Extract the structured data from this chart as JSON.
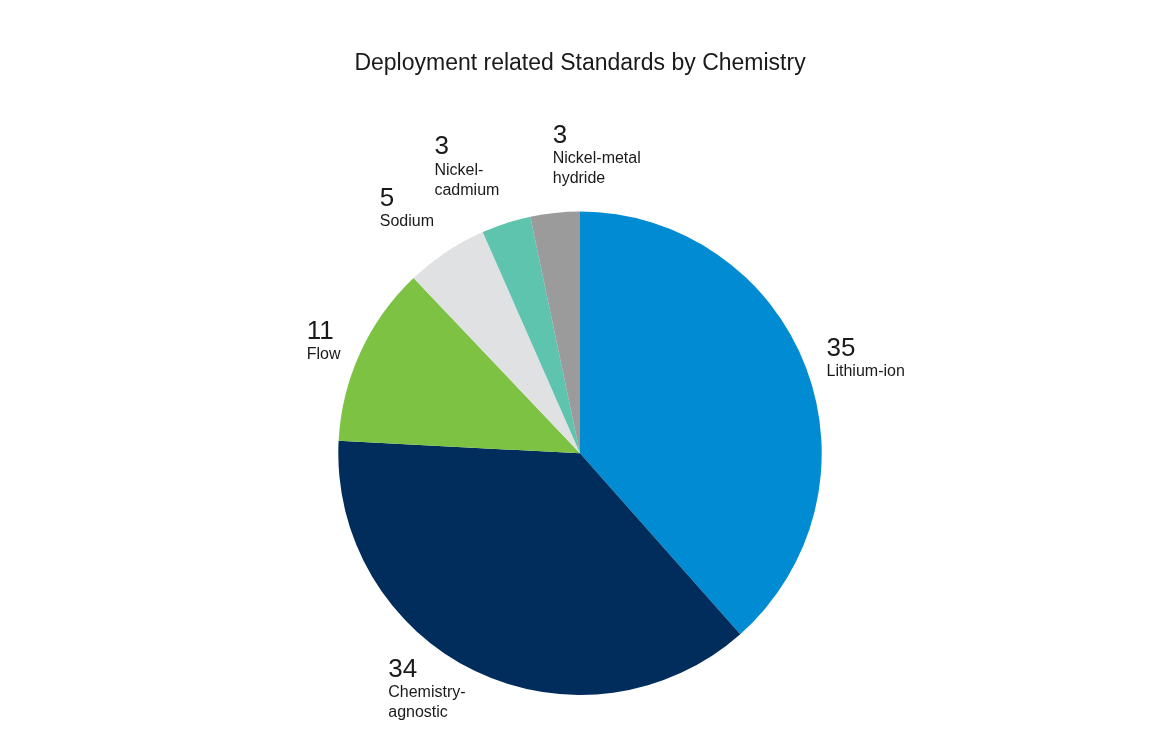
{
  "chart_data": {
    "type": "pie",
    "title": "Deployment related Standards by Chemistry",
    "categories": [
      "Lithium-ion",
      "Chemistry-agnostic",
      "Flow",
      "Sodium",
      "Nickel-cadmium",
      "Nickel-metal hydride"
    ],
    "values": [
      35,
      34,
      11,
      5,
      3,
      3
    ],
    "colors": [
      "#008bd2",
      "#002d5c",
      "#7dc242",
      "#e0e1e3",
      "#5fc4ad",
      "#9b9b9b"
    ],
    "data_labels": true,
    "legend": false
  }
}
